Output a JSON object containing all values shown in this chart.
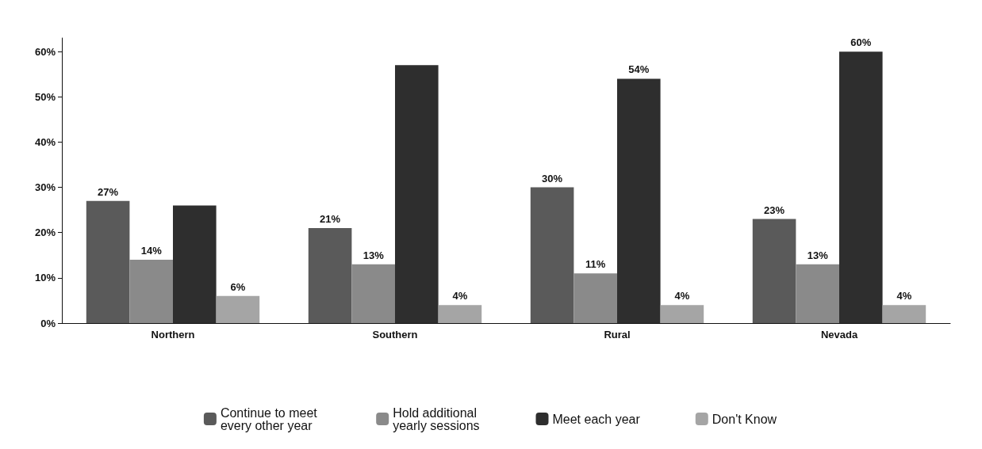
{
  "chart_data": {
    "type": "bar",
    "categories": [
      "Northern",
      "Southern",
      "Rural",
      "Nevada"
    ],
    "series": [
      {
        "name": "Continue to meet every other year",
        "color": "#5a5a5a",
        "values": [
          27,
          21,
          30,
          23
        ],
        "value_labels": [
          "27%",
          "21%",
          "30%",
          "23%"
        ]
      },
      {
        "name": "Hold additional yearly sessions",
        "color": "#8a8a8a",
        "values": [
          14,
          13,
          11,
          13
        ],
        "value_labels": [
          "14%",
          "13%",
          "11%",
          "13%"
        ]
      },
      {
        "name": "Meet each year",
        "color": "#2e2e2e",
        "values": [
          26,
          57,
          54,
          60
        ],
        "value_labels": [
          null,
          null,
          "54%",
          "60%"
        ]
      },
      {
        "name": "Don't Know",
        "color": "#a5a5a5",
        "values": [
          6,
          4,
          4,
          4
        ],
        "value_labels": [
          "6%",
          "4%",
          "4%",
          "4%"
        ]
      }
    ],
    "ylim": [
      0,
      63
    ],
    "yticks": [
      {
        "value": 0,
        "label": "0%"
      },
      {
        "value": 10,
        "label": "10%"
      },
      {
        "value": 20,
        "label": "20%"
      },
      {
        "value": 30,
        "label": "30%"
      },
      {
        "value": 40,
        "label": "40%"
      },
      {
        "value": 50,
        "label": "50%"
      },
      {
        "value": 60,
        "label": "60%"
      }
    ],
    "grid": false,
    "legend": "bottom"
  }
}
